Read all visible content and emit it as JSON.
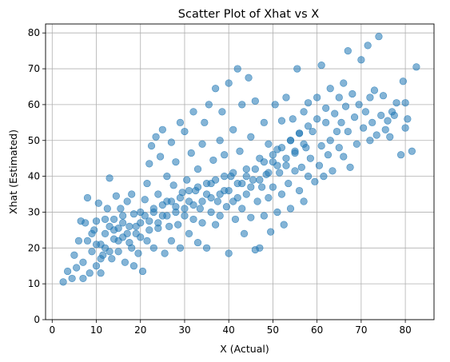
{
  "chart_data": {
    "type": "scatter",
    "title": "Scatter Plot of Xhat vs X",
    "xlabel": "X (Actual)",
    "ylabel": "Xhat (Estimated)",
    "xlim": [
      -1.5,
      86.5
    ],
    "ylim": [
      0,
      82.5
    ],
    "xticks": [
      "0",
      "10",
      "20",
      "30",
      "40",
      "50",
      "60",
      "70",
      "80"
    ],
    "yticks": [
      "0",
      "10",
      "20",
      "30",
      "40",
      "50",
      "60",
      "70",
      "80"
    ],
    "grid": true,
    "marker_color": "#1f77b4",
    "marker_alpha": 0.55,
    "series": [
      {
        "points": [
          [
            2.5,
            10.5
          ],
          [
            3.5,
            13.5
          ],
          [
            4.5,
            11.5
          ],
          [
            5,
            18
          ],
          [
            5.5,
            14.5
          ],
          [
            6,
            22
          ],
          [
            6.5,
            27.5
          ],
          [
            7,
            16
          ],
          [
            7,
            11.5
          ],
          [
            7.5,
            27
          ],
          [
            8,
            34
          ],
          [
            8,
            22
          ],
          [
            8.5,
            13
          ],
          [
            9,
            19
          ],
          [
            9.5,
            25
          ],
          [
            10,
            27.5
          ],
          [
            10,
            15
          ],
          [
            10.5,
            32.5
          ],
          [
            11,
            21
          ],
          [
            11,
            13
          ],
          [
            11.5,
            18
          ],
          [
            12,
            24
          ],
          [
            12,
            20
          ],
          [
            12.5,
            31
          ],
          [
            13,
            26
          ],
          [
            13,
            39.5
          ],
          [
            13.5,
            17
          ],
          [
            14,
            22.5
          ],
          [
            14,
            28
          ],
          [
            14.5,
            34.5
          ],
          [
            15,
            19
          ],
          [
            15,
            25.5
          ],
          [
            15.5,
            31
          ],
          [
            16,
            23
          ],
          [
            16,
            29
          ],
          [
            16.5,
            16
          ],
          [
            17,
            33
          ],
          [
            17.5,
            26
          ],
          [
            17.5,
            21.5
          ],
          [
            18,
            35
          ],
          [
            18.5,
            29.5
          ],
          [
            18.5,
            15
          ],
          [
            19,
            24
          ],
          [
            19.5,
            18.5
          ],
          [
            20,
            30
          ],
          [
            20,
            27
          ],
          [
            20.5,
            13.5
          ],
          [
            21,
            33.5
          ],
          [
            21.5,
            22
          ],
          [
            21.5,
            38
          ],
          [
            22,
            43.5
          ],
          [
            22,
            27.5
          ],
          [
            22.5,
            48.5
          ],
          [
            23,
            31
          ],
          [
            23,
            20
          ],
          [
            23.5,
            51
          ],
          [
            24,
            25.5
          ],
          [
            24,
            35
          ],
          [
            24.5,
            45.5
          ],
          [
            25,
            29
          ],
          [
            25,
            53
          ],
          [
            25.5,
            18.5
          ],
          [
            26,
            33
          ],
          [
            26,
            40
          ],
          [
            26.5,
            26
          ],
          [
            27,
            49.5
          ],
          [
            27,
            22
          ],
          [
            27.5,
            37.5
          ],
          [
            28,
            31.5
          ],
          [
            28,
            44
          ],
          [
            28.5,
            26.5
          ],
          [
            29,
            55
          ],
          [
            29,
            20
          ],
          [
            29.5,
            35.5
          ],
          [
            30,
            29
          ],
          [
            30,
            52.5
          ],
          [
            30.5,
            39
          ],
          [
            31,
            24
          ],
          [
            31,
            33
          ],
          [
            31.5,
            46.5
          ],
          [
            32,
            28
          ],
          [
            32,
            58
          ],
          [
            32.5,
            36
          ],
          [
            33,
            21.5
          ],
          [
            33,
            42
          ],
          [
            33.5,
            31
          ],
          [
            34,
            49
          ],
          [
            34,
            27
          ],
          [
            34.5,
            55
          ],
          [
            35,
            35
          ],
          [
            35,
            20
          ],
          [
            35.5,
            60
          ],
          [
            36,
            38
          ],
          [
            36,
            30
          ],
          [
            36.5,
            44.5
          ],
          [
            37,
            26.5
          ],
          [
            37,
            64.5
          ],
          [
            37.5,
            33
          ],
          [
            38,
            50
          ],
          [
            38,
            29
          ],
          [
            38.5,
            58
          ],
          [
            39,
            36
          ],
          [
            39,
            46
          ],
          [
            39.5,
            31.5
          ],
          [
            40,
            66
          ],
          [
            40,
            18.5
          ],
          [
            40.5,
            40
          ],
          [
            41,
            33
          ],
          [
            41,
            53
          ],
          [
            41.5,
            28
          ],
          [
            42,
            70
          ],
          [
            42,
            38
          ],
          [
            42.5,
            47
          ],
          [
            43,
            31
          ],
          [
            43,
            60
          ],
          [
            43.5,
            24
          ],
          [
            44,
            42
          ],
          [
            44,
            35
          ],
          [
            44.5,
            67.5
          ],
          [
            45,
            28.5
          ],
          [
            45,
            51
          ],
          [
            45.5,
            39
          ],
          [
            46,
            19.5
          ],
          [
            46,
            61
          ],
          [
            46.5,
            33
          ],
          [
            47,
            45
          ],
          [
            47,
            20
          ],
          [
            47.5,
            37
          ],
          [
            48,
            55
          ],
          [
            48,
            29
          ],
          [
            48.5,
            40.5
          ],
          [
            49,
            49
          ],
          [
            49,
            34
          ],
          [
            49.5,
            24.5
          ],
          [
            50,
            44
          ],
          [
            50,
            37
          ],
          [
            50.5,
            60
          ],
          [
            51,
            30
          ],
          [
            51,
            47.5
          ],
          [
            51.5,
            41
          ],
          [
            52,
            55.5
          ],
          [
            52,
            35
          ],
          [
            52.5,
            26.5
          ],
          [
            53,
            43
          ],
          [
            53,
            62
          ],
          [
            53.5,
            38
          ],
          [
            54,
            50
          ],
          [
            54,
            31
          ],
          [
            54.5,
            56
          ],
          [
            55,
            41.5
          ],
          [
            55,
            46.5
          ],
          [
            55.5,
            70
          ],
          [
            56,
            36
          ],
          [
            56,
            52
          ],
          [
            56.5,
            42.5
          ],
          [
            57,
            58
          ],
          [
            57,
            33
          ],
          [
            57.5,
            48
          ],
          [
            58,
            40
          ],
          [
            58,
            60.5
          ],
          [
            58.5,
            45
          ],
          [
            59,
            52.5
          ],
          [
            59.5,
            38.5
          ],
          [
            60,
            62
          ],
          [
            60,
            56
          ],
          [
            60.5,
            43
          ],
          [
            61,
            48.5
          ],
          [
            61,
            71
          ],
          [
            61.5,
            40
          ],
          [
            62,
            55
          ],
          [
            62,
            59
          ],
          [
            62.5,
            46
          ],
          [
            63,
            64.5
          ],
          [
            63,
            50
          ],
          [
            63.5,
            41.5
          ],
          [
            64,
            57.5
          ],
          [
            64.5,
            52.5
          ],
          [
            65,
            62
          ],
          [
            65,
            48
          ],
          [
            65.5,
            55
          ],
          [
            66,
            66
          ],
          [
            66,
            45.5
          ],
          [
            66.5,
            59.5
          ],
          [
            67,
            75
          ],
          [
            67,
            52.5
          ],
          [
            67.5,
            42.5
          ],
          [
            68,
            63
          ],
          [
            68.5,
            56.5
          ],
          [
            69,
            49
          ],
          [
            69.5,
            60
          ],
          [
            70,
            72.5
          ],
          [
            70.5,
            53.5
          ],
          [
            71,
            58
          ],
          [
            71.5,
            76.5
          ],
          [
            72,
            62
          ],
          [
            72,
            50
          ],
          [
            72.5,
            55
          ],
          [
            73,
            64
          ],
          [
            73.5,
            51.5
          ],
          [
            74,
            79
          ],
          [
            74.5,
            57
          ],
          [
            75,
            62.5
          ],
          [
            75.5,
            53
          ],
          [
            76,
            55.5
          ],
          [
            76.5,
            51
          ],
          [
            77,
            58
          ],
          [
            77.5,
            57
          ],
          [
            78,
            60.5
          ],
          [
            79,
            46
          ],
          [
            79.5,
            66.5
          ],
          [
            80,
            60.5
          ],
          [
            80,
            53.5
          ],
          [
            80.5,
            56
          ],
          [
            81.5,
            47
          ],
          [
            82.5,
            70.5
          ],
          [
            9,
            24
          ],
          [
            10,
            21
          ],
          [
            11,
            17
          ],
          [
            12,
            28
          ],
          [
            13,
            19
          ],
          [
            14,
            25
          ],
          [
            15,
            22
          ],
          [
            16,
            27
          ],
          [
            17,
            24
          ],
          [
            18,
            20
          ],
          [
            19,
            26
          ],
          [
            20,
            23
          ],
          [
            21,
            29
          ],
          [
            22,
            25
          ],
          [
            23,
            30
          ],
          [
            24,
            27
          ],
          [
            25,
            32
          ],
          [
            26,
            29
          ],
          [
            27,
            33
          ],
          [
            28,
            30
          ],
          [
            29,
            34
          ],
          [
            30,
            31
          ],
          [
            31,
            36
          ],
          [
            32,
            32
          ],
          [
            33,
            37
          ],
          [
            34,
            33
          ],
          [
            35,
            38
          ],
          [
            36,
            34
          ],
          [
            37,
            39
          ],
          [
            38,
            35
          ],
          [
            39,
            40
          ],
          [
            40,
            36
          ],
          [
            41,
            41
          ],
          [
            42,
            34
          ],
          [
            43,
            38
          ],
          [
            44,
            40
          ],
          [
            45,
            37
          ],
          [
            46,
            42
          ],
          [
            47,
            39
          ],
          [
            48,
            44
          ],
          [
            49,
            41
          ],
          [
            50,
            46
          ],
          [
            51,
            43
          ],
          [
            52,
            48
          ],
          [
            53,
            45
          ],
          [
            54,
            50
          ],
          [
            55,
            47
          ],
          [
            56,
            52
          ],
          [
            57,
            49
          ],
          [
            58,
            54
          ]
        ]
      }
    ]
  }
}
